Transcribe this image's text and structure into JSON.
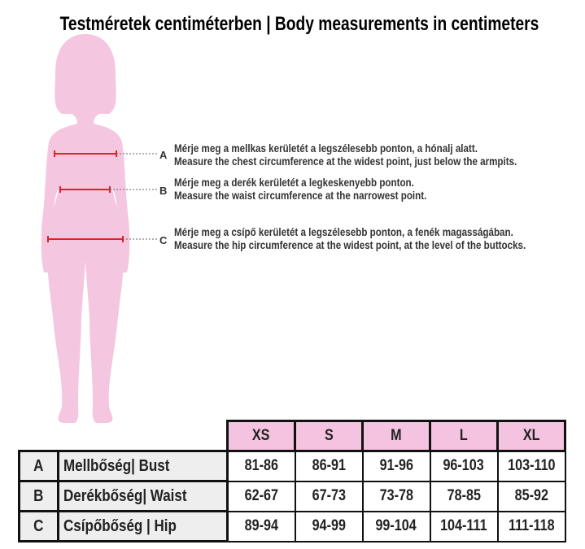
{
  "title": "Testméretek centiméterben | Body measurements in centimeters",
  "colors": {
    "silhouette": "#f5c6e0",
    "measure_line": "#e01f26",
    "header_bg": "#f4c3df"
  },
  "notes": [
    {
      "letter": "A",
      "hu": "Mérje meg a mellkas kerületét a legszélesebb ponton, a hónalj alatt.",
      "en": "Measure the chest circumference at the widest point, just below the armpits."
    },
    {
      "letter": "B",
      "hu": "Mérje meg a derék kerületét a legkeskenyebb ponton.",
      "en": "Measure the waist circumference at the narrowest point."
    },
    {
      "letter": "C",
      "hu": "Mérje meg a csípő kerületét a legszélesebb ponton, a fenék magasságában.",
      "en": "Measure the hip circumference at the widest point, at the level of the buttocks."
    }
  ],
  "table": {
    "sizes": [
      "XS",
      "S",
      "M",
      "L",
      "XL"
    ],
    "rows": [
      {
        "letter": "A",
        "label": "Mellbőség| Bust",
        "values": [
          "81-86",
          "86-91",
          "91-96",
          "96-103",
          "103-110"
        ]
      },
      {
        "letter": "B",
        "label": "Derékbőség| Waist",
        "values": [
          "62-67",
          "67-73",
          "73-78",
          "78-85",
          "85-92"
        ]
      },
      {
        "letter": "C",
        "label": "Csípőbőség | Hip",
        "values": [
          "89-94",
          "94-99",
          "99-104",
          "104-111",
          "111-118"
        ]
      }
    ]
  }
}
